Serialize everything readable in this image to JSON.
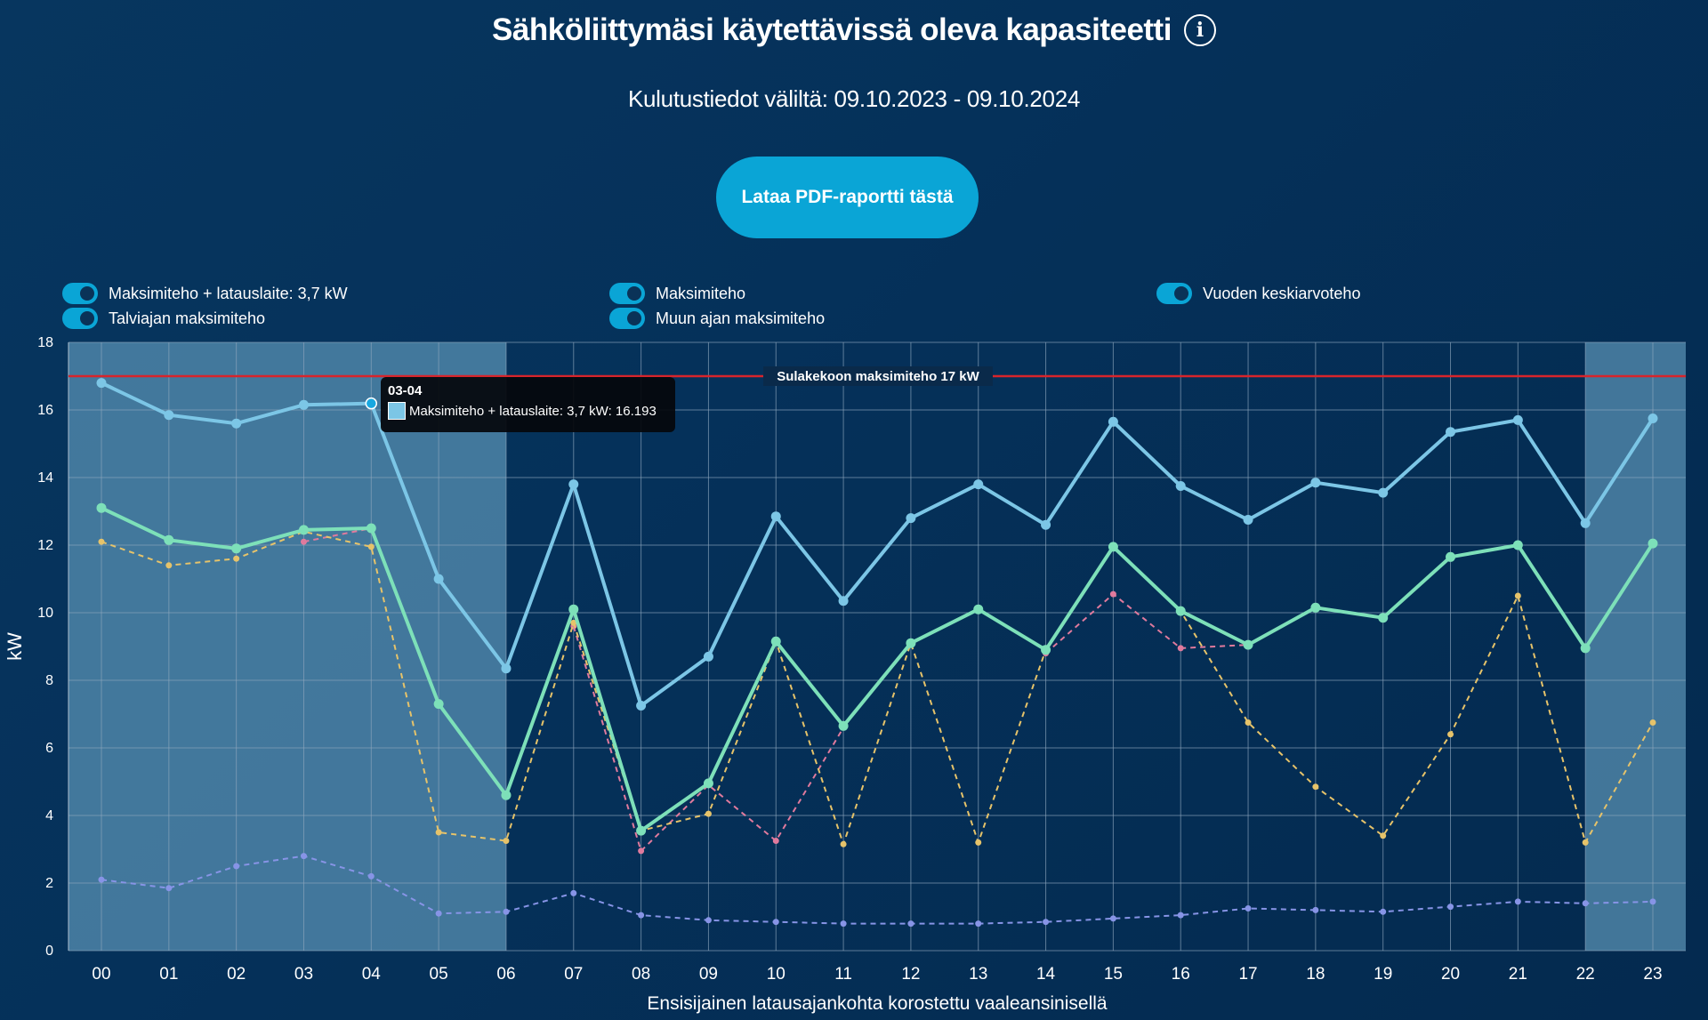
{
  "page": {
    "title": "Sähköliittymäsi käytettävissä oleva kapasiteetti",
    "info_icon": "info-icon",
    "subtitle": "Kulutustiedot väliltä: 09.10.2023 - 09.10.2024",
    "pdf_button_label": "Lataa PDF-raportti tästä"
  },
  "legend": [
    {
      "label": "Maksimiteho + latauslaite: 3,7 kW",
      "enabled": true
    },
    {
      "label": "Maksimiteho",
      "enabled": true
    },
    {
      "label": "Vuoden keskiarvoteho",
      "enabled": true
    },
    {
      "label": "Talviajan maksimiteho",
      "enabled": true
    },
    {
      "label": "Muun ajan maksimiteho",
      "enabled": true
    }
  ],
  "tooltip": {
    "title": "03-04",
    "text": "Maksimiteho + latauslaite: 3,7 kW: 16.193"
  },
  "chart_data": {
    "type": "line",
    "categories": [
      "00",
      "01",
      "02",
      "03",
      "04",
      "05",
      "06",
      "07",
      "08",
      "09",
      "10",
      "11",
      "12",
      "13",
      "14",
      "15",
      "16",
      "17",
      "18",
      "19",
      "20",
      "21",
      "22",
      "23"
    ],
    "ylabel": "kW",
    "xlabel": "Ensisijainen latausajankohta korostettu vaaleansinisellä",
    "ylim": [
      0,
      18
    ],
    "yticks": [
      0,
      2,
      4,
      6,
      8,
      10,
      12,
      14,
      16,
      18
    ],
    "grid": true,
    "highlighted_hours": [
      "00",
      "01",
      "02",
      "03",
      "04",
      "05",
      "06",
      "22",
      "23"
    ],
    "reference_line": {
      "value": 17,
      "label": "Sulakekoon maksimiteho 17 kW",
      "color": "#d8242b"
    },
    "colors": {
      "charger": "#7cc6e6",
      "max": "#7de0b9",
      "winter": "#e6c36a",
      "other": "#e07a9d",
      "average": "#8794e6"
    },
    "series": [
      {
        "key": "charger",
        "name": "Maksimiteho + latauslaite: 3,7 kW",
        "style": "solid",
        "values": [
          16.8,
          15.85,
          15.6,
          16.15,
          16.193,
          11.0,
          8.35,
          13.8,
          7.25,
          8.7,
          12.85,
          10.35,
          12.8,
          13.8,
          12.6,
          15.65,
          13.75,
          12.75,
          13.85,
          13.55,
          15.35,
          15.7,
          12.65,
          15.75
        ]
      },
      {
        "key": "max",
        "name": "Maksimiteho",
        "style": "solid",
        "values": [
          13.1,
          12.15,
          11.9,
          12.45,
          12.5,
          7.3,
          4.6,
          10.1,
          3.55,
          4.95,
          9.15,
          6.65,
          9.1,
          10.1,
          8.9,
          11.95,
          10.05,
          9.05,
          10.15,
          9.85,
          11.65,
          12.0,
          8.95,
          12.05
        ]
      },
      {
        "key": "winter",
        "name": "Talviajan maksimiteho",
        "style": "dashed",
        "values": [
          12.1,
          11.4,
          11.6,
          12.4,
          11.95,
          3.5,
          3.25,
          9.7,
          3.55,
          4.05,
          9.15,
          3.15,
          9.1,
          3.2,
          8.9,
          11.95,
          10.05,
          6.75,
          4.85,
          3.4,
          6.4,
          10.5,
          3.2,
          6.75
        ]
      },
      {
        "key": "other",
        "name": "Muun ajan maksimiteho",
        "style": "dashed",
        "values": [
          null,
          null,
          null,
          12.1,
          12.5,
          null,
          null,
          9.6,
          2.95,
          4.9,
          3.25,
          6.6,
          null,
          null,
          8.8,
          10.55,
          8.95,
          9.05,
          null,
          null,
          null,
          null,
          null,
          null
        ]
      },
      {
        "key": "average",
        "name": "Vuoden keskiarvoteho",
        "style": "dashed",
        "values": [
          2.1,
          1.85,
          2.5,
          2.8,
          2.2,
          1.1,
          1.15,
          1.7,
          1.05,
          0.9,
          0.85,
          0.8,
          0.8,
          0.8,
          0.85,
          0.95,
          1.05,
          1.25,
          1.2,
          1.15,
          1.3,
          1.45,
          1.4,
          1.45
        ]
      }
    ]
  }
}
